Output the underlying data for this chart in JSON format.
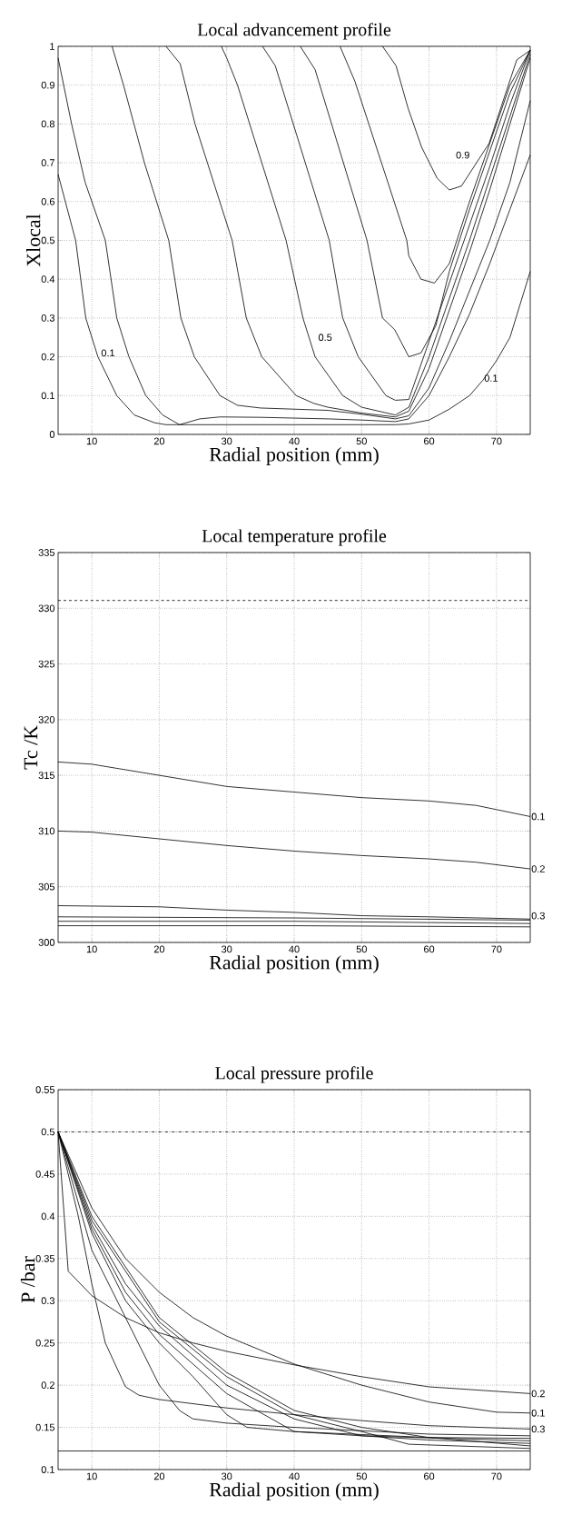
{
  "chart_data": [
    {
      "type": "line",
      "title": "Local advancement profile",
      "xlabel": "Radial position (mm)",
      "ylabel": "Xlocal",
      "xlim": [
        5,
        75
      ],
      "ylim": [
        0,
        1
      ],
      "xticks": [
        10,
        20,
        30,
        40,
        50,
        60,
        70
      ],
      "yticks": [
        0,
        0.1,
        0.2,
        0.3,
        0.4,
        0.5,
        0.6,
        0.7,
        0.8,
        0.9,
        1
      ],
      "grid": true,
      "series": [
        {
          "color": "#000000",
          "x": [
            5,
            7.6,
            9.1,
            10.9,
            13.7,
            16.3,
            19.3,
            21,
            30,
            40,
            50,
            55,
            57,
            60,
            63,
            66,
            68,
            70,
            72,
            75
          ],
          "values": [
            0.67,
            0.5,
            0.3,
            0.2,
            0.1,
            0.05,
            0.03,
            0.025,
            0.025,
            0.025,
            0.025,
            0.025,
            0.027,
            0.037,
            0.065,
            0.1,
            0.14,
            0.19,
            0.25,
            0.42
          ]
        },
        {
          "color": "#000000",
          "x": [
            5,
            7,
            9,
            12,
            13.7,
            15.5,
            18,
            20.5,
            23,
            26,
            29,
            35,
            45,
            50,
            55,
            57,
            60,
            63,
            66,
            69,
            72,
            75
          ],
          "values": [
            0.97,
            0.8,
            0.65,
            0.5,
            0.3,
            0.2,
            0.1,
            0.05,
            0.025,
            0.04,
            0.045,
            0.044,
            0.04,
            0.037,
            0.033,
            0.04,
            0.1,
            0.2,
            0.31,
            0.44,
            0.58,
            0.72
          ]
        },
        {
          "color": "#000000",
          "x": [
            13,
            14.7,
            17.8,
            21.4,
            23.2,
            25.2,
            29,
            31.6,
            35,
            45,
            50,
            55,
            57,
            60,
            63,
            66,
            69,
            72,
            75
          ],
          "values": [
            1,
            0.9,
            0.7,
            0.5,
            0.3,
            0.2,
            0.1,
            0.075,
            0.068,
            0.062,
            0.052,
            0.04,
            0.048,
            0.12,
            0.24,
            0.37,
            0.5,
            0.65,
            0.86
          ]
        },
        {
          "color": "#000000",
          "x": [
            21,
            23.1,
            25.3,
            30.8,
            32.9,
            35.2,
            40.3,
            42.9,
            45,
            50,
            55,
            57,
            60,
            63,
            66,
            69,
            72,
            75
          ],
          "values": [
            1,
            0.955,
            0.8,
            0.5,
            0.3,
            0.2,
            0.1,
            0.08,
            0.07,
            0.055,
            0.045,
            0.06,
            0.17,
            0.32,
            0.47,
            0.63,
            0.8,
            0.97
          ]
        },
        {
          "color": "#000000",
          "x": [
            29.2,
            30,
            31.6,
            38.8,
            41.3,
            43.1,
            47.2,
            50,
            55,
            57,
            60,
            63,
            66,
            69,
            72,
            75
          ],
          "values": [
            1,
            0.97,
            0.9,
            0.5,
            0.3,
            0.2,
            0.1,
            0.07,
            0.05,
            0.07,
            0.2,
            0.35,
            0.5,
            0.66,
            0.82,
            0.98
          ]
        },
        {
          "color": "#000000",
          "x": [
            35.3,
            37.2,
            45.2,
            47.2,
            49.5,
            53.6,
            55,
            57,
            60,
            63,
            66,
            69,
            72,
            75
          ],
          "values": [
            1,
            0.95,
            0.5,
            0.3,
            0.2,
            0.1,
            0.088,
            0.09,
            0.24,
            0.39,
            0.54,
            0.69,
            0.85,
            0.99
          ]
        },
        {
          "color": "#000000",
          "x": [
            40.9,
            43.1,
            50.8,
            53.1,
            54.9,
            57,
            58.8,
            61,
            63,
            66,
            69,
            72,
            75
          ],
          "values": [
            1,
            0.94,
            0.5,
            0.3,
            0.27,
            0.2,
            0.21,
            0.28,
            0.42,
            0.58,
            0.73,
            0.88,
            0.99
          ]
        },
        {
          "color": "#000000",
          "x": [
            46.8,
            49,
            56.7,
            57,
            58.8,
            60.8,
            63,
            66,
            69,
            72,
            75
          ],
          "values": [
            1,
            0.91,
            0.5,
            0.46,
            0.4,
            0.39,
            0.44,
            0.6,
            0.75,
            0.9,
            0.99
          ]
        },
        {
          "color": "#000000",
          "x": [
            53.1,
            55.1,
            56.9,
            58.9,
            61.2,
            63,
            64.8,
            68.9,
            73,
            75
          ],
          "values": [
            1,
            0.95,
            0.84,
            0.74,
            0.66,
            0.63,
            0.64,
            0.75,
            0.965,
            0.99
          ]
        }
      ],
      "annotations": [
        "0.1",
        "0.5",
        "0.1",
        "0.9"
      ]
    },
    {
      "type": "line",
      "title": "Local temperature profile",
      "xlabel": "Radial position (mm)",
      "ylabel": "Tc /K",
      "xlim": [
        5,
        75
      ],
      "ylim": [
        300,
        335
      ],
      "xticks": [
        10,
        20,
        30,
        40,
        50,
        60,
        70
      ],
      "yticks": [
        300,
        305,
        310,
        315,
        320,
        325,
        330,
        335
      ],
      "grid": true,
      "series": [
        {
          "color": "#000000",
          "x": [
            5,
            10,
            20,
            30,
            40,
            50,
            60,
            67,
            75
          ],
          "values": [
            316.2,
            316,
            315,
            314,
            313.5,
            313,
            312.7,
            312.3,
            311.3
          ]
        },
        {
          "color": "#000000",
          "x": [
            5,
            10,
            20,
            30,
            40,
            50,
            60,
            67,
            75
          ],
          "values": [
            310,
            309.9,
            309.3,
            308.7,
            308.2,
            307.8,
            307.5,
            307.2,
            306.6
          ]
        },
        {
          "color": "#000000",
          "x": [
            5,
            20,
            30,
            40,
            50,
            60,
            75
          ],
          "values": [
            303.3,
            303.2,
            302.9,
            302.7,
            302.4,
            302.3,
            302.1
          ]
        },
        {
          "color": "#000000",
          "x": [
            5,
            40,
            75
          ],
          "values": [
            302.3,
            302.2,
            302
          ]
        },
        {
          "color": "#000000",
          "x": [
            5,
            40,
            75
          ],
          "values": [
            301.9,
            301.9,
            301.7
          ]
        },
        {
          "color": "#000000",
          "x": [
            5,
            40,
            75
          ],
          "values": [
            301.5,
            301.5,
            301.4
          ]
        }
      ],
      "ref_lines": [
        {
          "axis": "y",
          "value": 330.7,
          "color": "#000000",
          "line_style": "dashed"
        }
      ],
      "annotations": [
        "0.1",
        "0.2",
        "0.3"
      ]
    },
    {
      "type": "line",
      "title": "Local pressure profile",
      "xlabel": "Radial position (mm)",
      "ylabel": "P /bar",
      "xlim": [
        5,
        75
      ],
      "ylim": [
        0.1,
        0.55
      ],
      "xticks": [
        10,
        20,
        30,
        40,
        50,
        60,
        70
      ],
      "yticks": [
        0.1,
        0.15,
        0.2,
        0.25,
        0.3,
        0.35,
        0.4,
        0.45,
        0.5,
        0.55
      ],
      "grid": true,
      "series": [
        {
          "color": "#000000",
          "x": [
            5,
            6.5,
            10,
            15,
            20,
            25,
            30,
            40,
            50,
            60,
            75
          ],
          "values": [
            0.5,
            0.335,
            0.306,
            0.28,
            0.262,
            0.25,
            0.24,
            0.224,
            0.21,
            0.198,
            0.19
          ]
        },
        {
          "color": "#000000",
          "x": [
            5,
            10,
            15,
            20,
            25,
            30,
            40,
            50,
            60,
            70,
            75
          ],
          "values": [
            0.5,
            0.41,
            0.35,
            0.31,
            0.28,
            0.258,
            0.225,
            0.2,
            0.18,
            0.168,
            0.167
          ]
        },
        {
          "color": "#000000",
          "x": [
            5,
            8,
            10,
            12,
            15,
            17,
            20,
            30,
            40,
            50,
            60,
            75
          ],
          "values": [
            0.5,
            0.4,
            0.32,
            0.25,
            0.198,
            0.188,
            0.183,
            0.173,
            0.165,
            0.158,
            0.152,
            0.148
          ]
        },
        {
          "color": "#000000",
          "x": [
            5,
            10,
            15,
            20,
            23,
            25,
            30,
            40,
            60,
            75
          ],
          "values": [
            0.5,
            0.36,
            0.28,
            0.2,
            0.17,
            0.16,
            0.155,
            0.15,
            0.142,
            0.14
          ]
        },
        {
          "color": "#000000",
          "x": [
            5,
            10,
            15,
            20,
            25,
            30,
            33,
            40,
            60,
            75
          ],
          "values": [
            0.5,
            0.38,
            0.3,
            0.25,
            0.21,
            0.165,
            0.15,
            0.145,
            0.138,
            0.137
          ]
        },
        {
          "color": "#000000",
          "x": [
            5,
            10,
            15,
            20,
            30,
            40,
            50,
            75
          ],
          "values": [
            0.5,
            0.385,
            0.31,
            0.26,
            0.19,
            0.145,
            0.14,
            0.134
          ]
        },
        {
          "color": "#000000",
          "x": [
            5,
            10,
            15,
            20,
            30,
            40,
            50,
            60,
            75
          ],
          "values": [
            0.5,
            0.39,
            0.32,
            0.27,
            0.2,
            0.16,
            0.14,
            0.135,
            0.131
          ]
        },
        {
          "color": "#000000",
          "x": [
            5,
            10,
            20,
            30,
            40,
            50,
            57,
            75
          ],
          "values": [
            0.5,
            0.395,
            0.275,
            0.21,
            0.165,
            0.145,
            0.13,
            0.125
          ]
        },
        {
          "color": "#000000",
          "x": [
            5,
            10,
            20,
            30,
            40,
            50,
            60,
            75
          ],
          "values": [
            0.5,
            0.4,
            0.28,
            0.215,
            0.17,
            0.15,
            0.138,
            0.128
          ]
        }
      ],
      "ref_lines": [
        {
          "axis": "y",
          "value": 0.5,
          "color": "#000000",
          "line_style": "dashdot"
        },
        {
          "axis": "y",
          "value": 0.122,
          "color": "#000000",
          "line_style": "solid"
        }
      ],
      "annotations": [
        "0.2",
        "0.1",
        "0.3"
      ]
    }
  ]
}
